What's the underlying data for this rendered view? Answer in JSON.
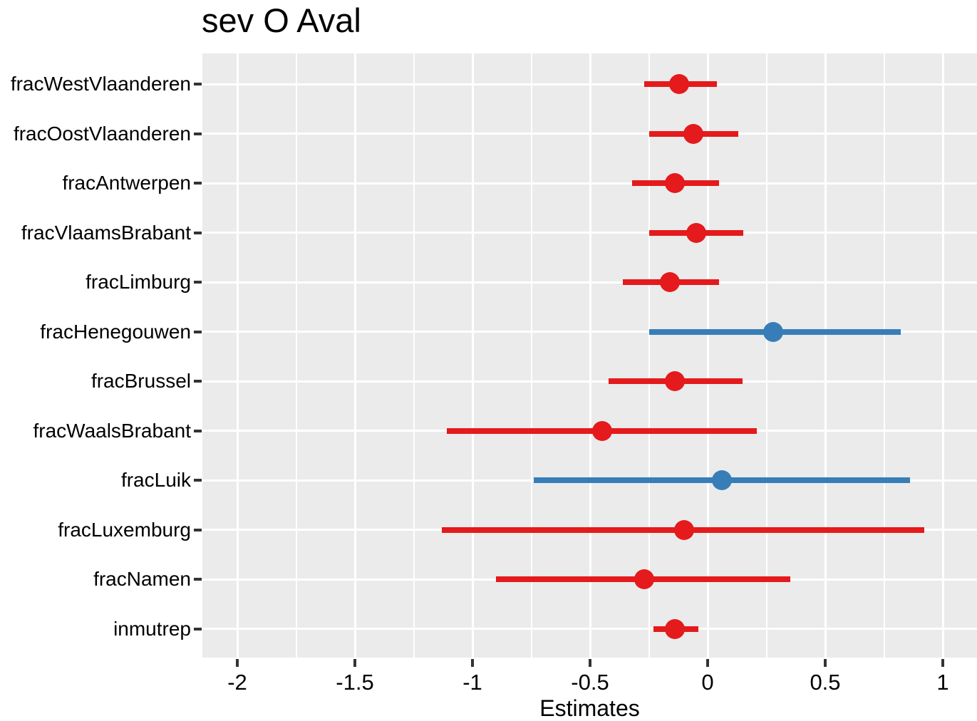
{
  "chart_data": {
    "type": "scatter",
    "subtype": "coefficient-forest-dot-whisker",
    "title": "sev O Aval",
    "legend": "none",
    "x_axis": {
      "label": "Estimates",
      "range": [
        -2.15,
        1.15
      ],
      "ticks": [
        {
          "value": -2,
          "label": "-2"
        },
        {
          "value": -1.5,
          "label": "-1.5"
        },
        {
          "value": -1,
          "label": "-1"
        },
        {
          "value": -0.5,
          "label": "-0.5"
        },
        {
          "value": 0,
          "label": "0"
        },
        {
          "value": 0.5,
          "label": "0.5"
        },
        {
          "value": 1,
          "label": "1"
        }
      ],
      "minor_ticks": [
        -1.75,
        -1.25,
        -0.75,
        -0.25,
        0.25,
        0.75
      ],
      "grid": "vertical major+minor white lines on grey panel; horizontal major only"
    },
    "points": [
      {
        "term": "fracWestVlaanderen",
        "estimate": -0.12,
        "ci_low": -0.27,
        "ci_high": 0.04,
        "direction": "negative"
      },
      {
        "term": "fracOostVlaanderen",
        "estimate": -0.06,
        "ci_low": -0.25,
        "ci_high": 0.13,
        "direction": "negative"
      },
      {
        "term": "fracAntwerpen",
        "estimate": -0.14,
        "ci_low": -0.32,
        "ci_high": 0.05,
        "direction": "negative"
      },
      {
        "term": "fracVlaamsBrabant",
        "estimate": -0.05,
        "ci_low": -0.25,
        "ci_high": 0.15,
        "direction": "negative"
      },
      {
        "term": "fracLimburg",
        "estimate": -0.16,
        "ci_low": -0.36,
        "ci_high": 0.05,
        "direction": "negative"
      },
      {
        "term": "fracHenegouwen",
        "estimate": 0.28,
        "ci_low": -0.25,
        "ci_high": 0.82,
        "direction": "positive"
      },
      {
        "term": "fracBrussel",
        "estimate": -0.14,
        "ci_low": -0.42,
        "ci_high": 0.15,
        "direction": "negative"
      },
      {
        "term": "fracWaalsBrabant",
        "estimate": -0.45,
        "ci_low": -1.11,
        "ci_high": 0.21,
        "direction": "negative"
      },
      {
        "term": "fracLuik",
        "estimate": 0.06,
        "ci_low": -0.74,
        "ci_high": 0.86,
        "direction": "positive"
      },
      {
        "term": "fracLuxemburg",
        "estimate": -0.1,
        "ci_low": -1.13,
        "ci_high": 0.92,
        "direction": "negative"
      },
      {
        "term": "fracNamen",
        "estimate": -0.27,
        "ci_low": -0.9,
        "ci_high": 0.35,
        "direction": "negative"
      },
      {
        "term": "inmutrep",
        "estimate": -0.14,
        "ci_low": -0.23,
        "ci_high": -0.04,
        "direction": "negative"
      }
    ],
    "colors": {
      "negative": "#E41A1C",
      "positive": "#377EB8",
      "panel_background": "#EBEBEB",
      "gridline": "#FFFFFF",
      "axis_tick": "#333333",
      "text": "#000000"
    }
  }
}
